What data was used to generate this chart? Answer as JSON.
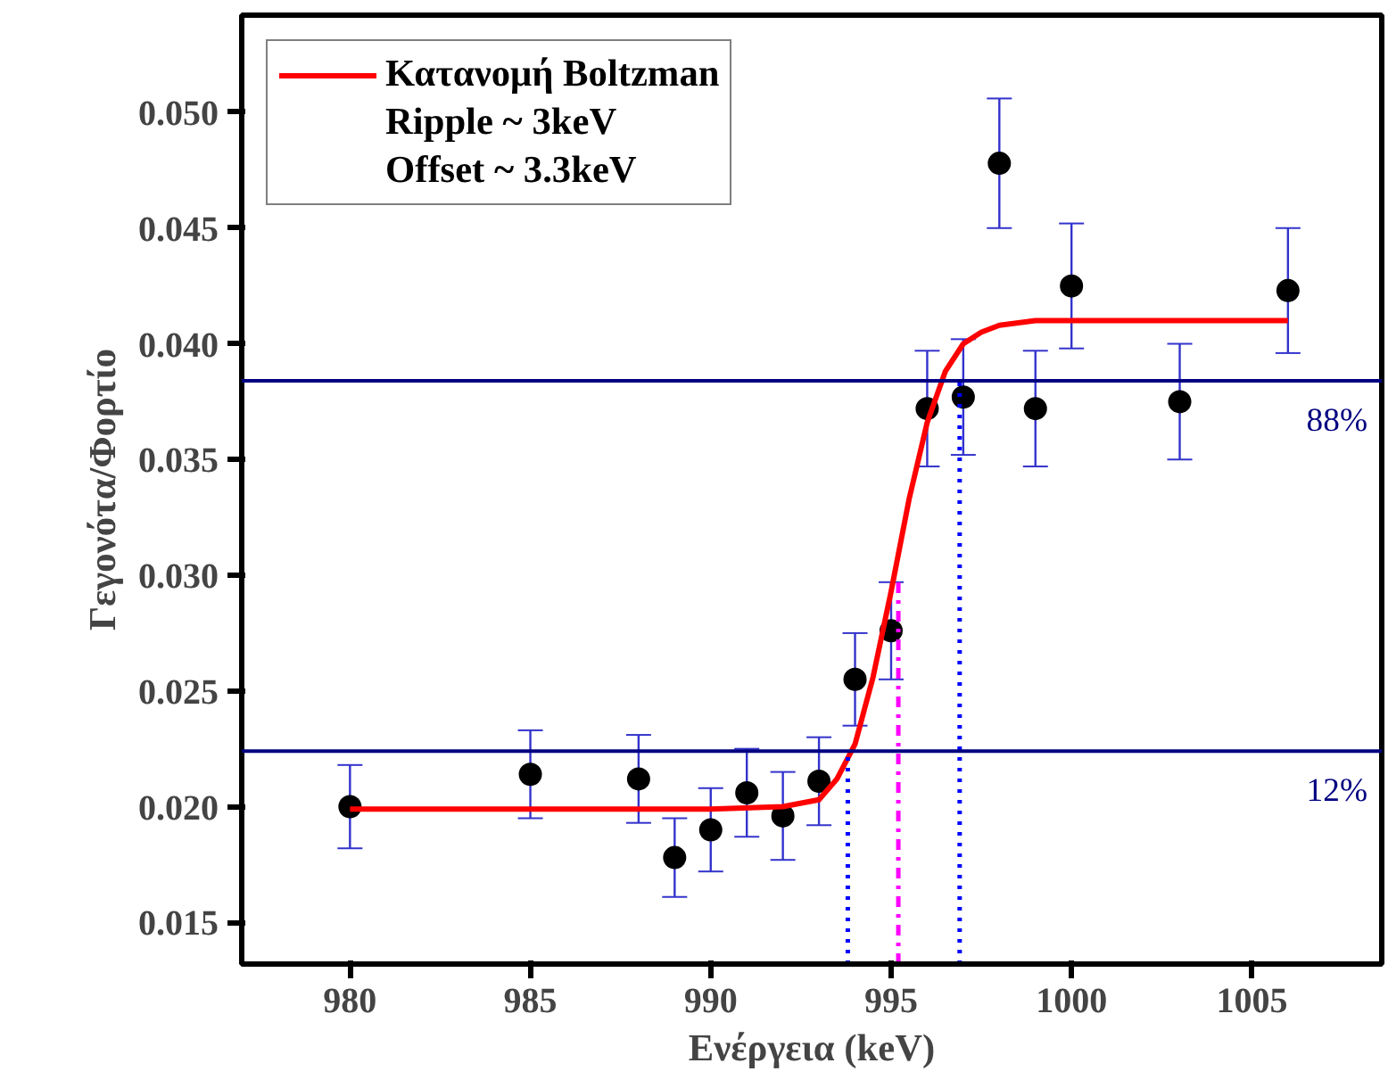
{
  "chart_data": {
    "type": "scatter",
    "xlabel": "Ενέργεια (keV)",
    "ylabel": "Γεγονότα/Φορτίο",
    "xlim": [
      977,
      1008.6
    ],
    "ylim": [
      0.0132,
      0.0542
    ],
    "xticks": [
      980,
      985,
      990,
      995,
      1000,
      1005
    ],
    "yticks": [
      {
        "value": 0.015,
        "label": "0.015"
      },
      {
        "value": 0.02,
        "label": "0.020"
      },
      {
        "value": 0.025,
        "label": "0.025"
      },
      {
        "value": 0.03,
        "label": "0.030"
      },
      {
        "value": 0.035,
        "label": "0.035"
      },
      {
        "value": 0.04,
        "label": "0.040"
      },
      {
        "value": 0.045,
        "label": "0.045"
      },
      {
        "value": 0.05,
        "label": "0.050"
      }
    ],
    "grid": false,
    "legend": "top left",
    "marker": "circle",
    "series": [
      {
        "type": "scatter",
        "color": "#000000",
        "x": [
          980,
          985,
          988,
          989,
          990,
          991,
          992,
          993,
          994,
          995,
          996,
          997,
          998,
          999,
          1000,
          1003,
          1006
        ],
        "values": [
          0.02,
          0.0214,
          0.0212,
          0.0178,
          0.019,
          0.0206,
          0.0196,
          0.0211,
          0.0255,
          0.0276,
          0.0372,
          0.0377,
          0.0478,
          0.0372,
          0.0425,
          0.0375,
          0.0423
        ],
        "errors": [
          0.0018,
          0.0019,
          0.0019,
          0.0017,
          0.0018,
          0.0019,
          0.0019,
          0.0019,
          0.002,
          0.0021,
          0.0025,
          0.0025,
          0.0028,
          0.0025,
          0.0027,
          0.0025,
          0.0027
        ]
      },
      {
        "type": "line",
        "name": "Κατανομή Boltzman",
        "color": "#ff0000",
        "marker": "none",
        "x": [
          980,
          985,
          990,
          992,
          993,
          993.5,
          994,
          994.5,
          995,
          995.5,
          996,
          996.5,
          997,
          997.5,
          998,
          999,
          1006
        ],
        "values": [
          0.0199,
          0.0199,
          0.0199,
          0.02,
          0.0203,
          0.0212,
          0.0227,
          0.0256,
          0.0293,
          0.0333,
          0.0366,
          0.0388,
          0.04,
          0.0405,
          0.0408,
          0.041,
          0.041
        ]
      },
      {
        "type": "line",
        "color": "#0000ff",
        "marker": "none",
        "line_style": "dotted",
        "x": [
          993.8,
          993.8
        ],
        "values": [
          0.0132,
          0.0224
        ]
      },
      {
        "type": "line",
        "color": "#0000ff",
        "marker": "none",
        "line_style": "dotted",
        "x": [
          996.9,
          996.9
        ],
        "values": [
          0.0132,
          0.0384
        ]
      },
      {
        "type": "line",
        "color": "#ff00ff",
        "marker": "none",
        "line_style": "dashdot",
        "x": [
          995.2,
          995.2
        ],
        "values": [
          0.0132,
          0.03
        ]
      }
    ],
    "ref_lines": [
      {
        "axis": "y",
        "value": 0.0384,
        "color": "#000080"
      },
      {
        "axis": "y",
        "value": 0.0224,
        "color": "#000080"
      }
    ],
    "annotations": [
      "Ripple ~ 3keV",
      "Offset ~ 3.3keV",
      {
        "text": "88%",
        "x": 1008.6,
        "y": 0.0384
      },
      {
        "text": "12%",
        "x": 1008.6,
        "y": 0.0224
      }
    ]
  }
}
